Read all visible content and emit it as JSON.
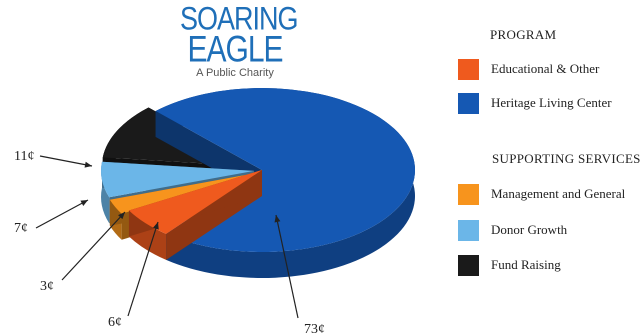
{
  "logo": {
    "line1": "SOARING",
    "line2": "EAGLE",
    "tagline": "A Public Charity"
  },
  "legend": {
    "program_heading": "PROGRAM",
    "supporting_heading": "SUPPORTING SERVICES",
    "items": [
      {
        "label": "Educational & Other",
        "color": "#ef5a1e"
      },
      {
        "label": "Heritage Living Center",
        "color": "#1558b3"
      },
      {
        "label": "Management and General",
        "color": "#f7941d"
      },
      {
        "label": "Donor Growth",
        "color": "#6bb6e8"
      },
      {
        "label": "Fund Raising",
        "color": "#1a1a1a"
      }
    ]
  },
  "chart_data": {
    "type": "pie",
    "style": "3d-exploded",
    "title": "",
    "slices": [
      {
        "category": "Heritage Living Center",
        "value": 73,
        "label": "73¢",
        "color": "#1558b3"
      },
      {
        "category": "Educational & Other",
        "value": 6,
        "label": "6¢",
        "color": "#ef5a1e"
      },
      {
        "category": "Management and General",
        "value": 3,
        "label": "3¢",
        "color": "#f7941d"
      },
      {
        "category": "Donor Growth",
        "value": 7,
        "label": "7¢",
        "color": "#6bb6e8"
      },
      {
        "category": "Fund Raising",
        "value": 11,
        "label": "11¢",
        "color": "#1a1a1a"
      }
    ],
    "legend_position": "right"
  }
}
